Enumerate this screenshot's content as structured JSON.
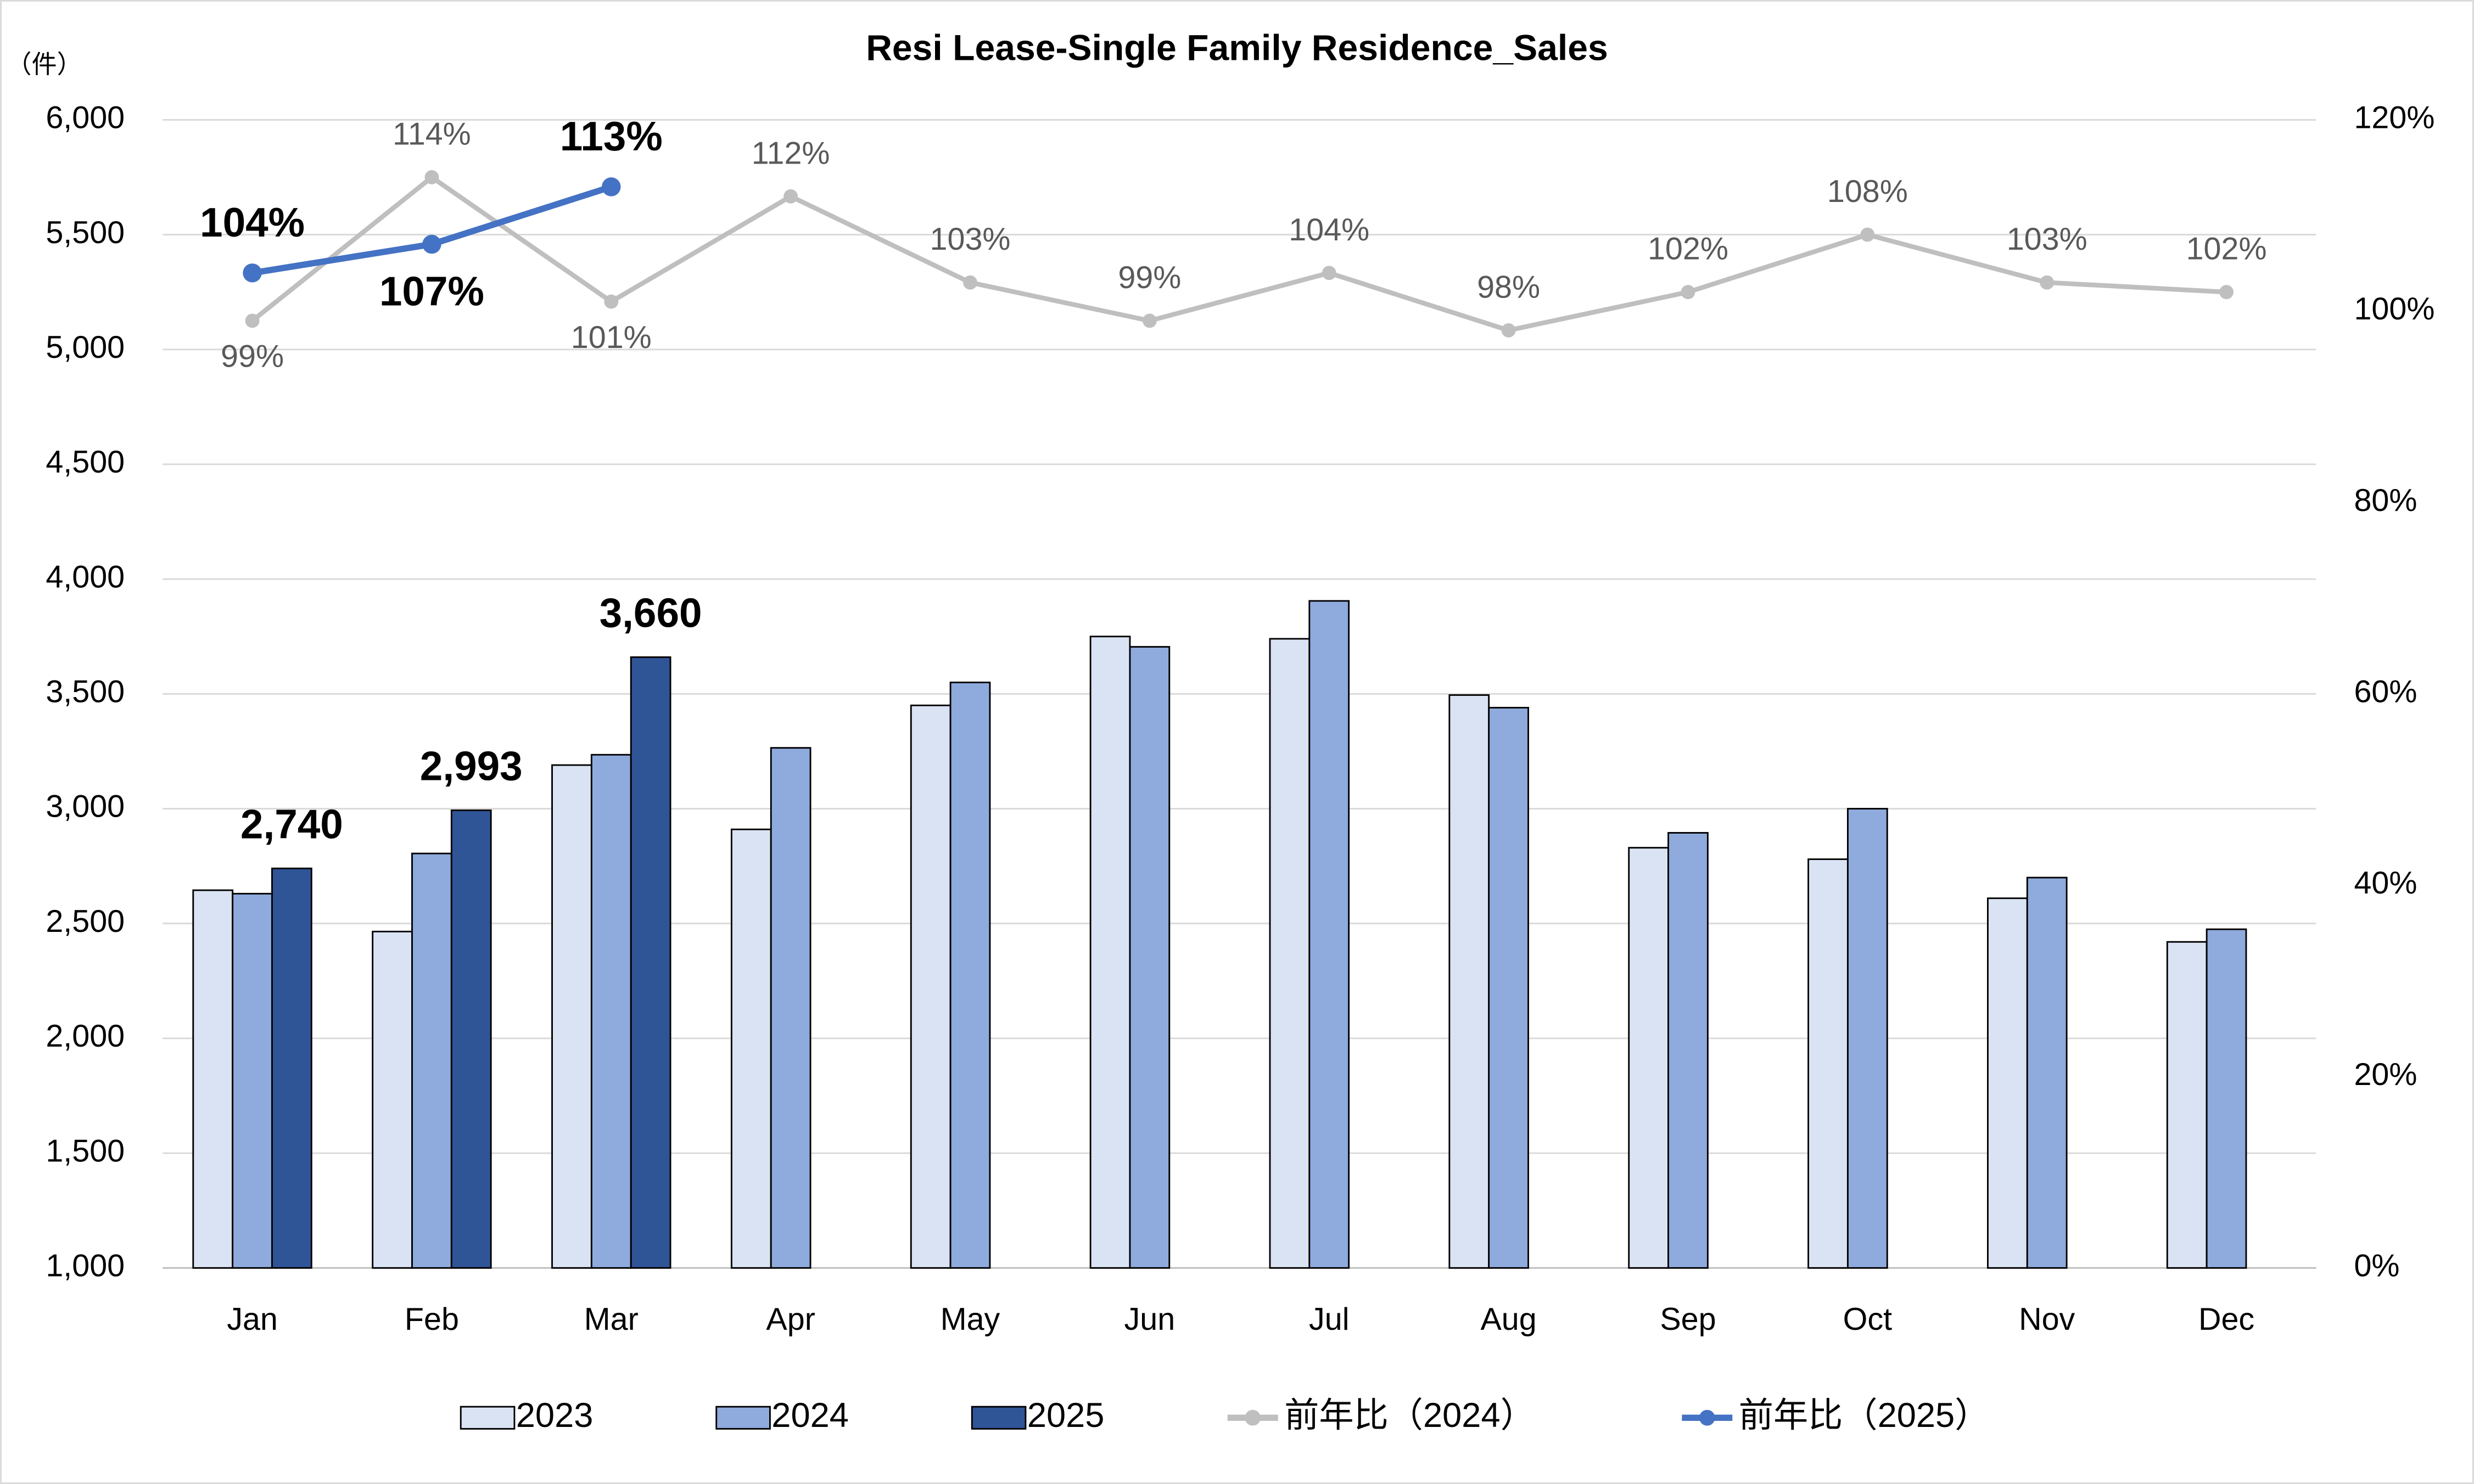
{
  "chart_data": {
    "type": "bar",
    "title": "Resi Lease-Single Family Residence_Sales",
    "y_label": "（件）",
    "categories": [
      "Jan",
      "Feb",
      "Mar",
      "Apr",
      "May",
      "Jun",
      "Jul",
      "Aug",
      "Sep",
      "Oct",
      "Nov",
      "Dec"
    ],
    "series": [
      {
        "name": "2023",
        "color": "#dae3f3",
        "values": [
          2645,
          2465,
          3190,
          2910,
          3450,
          3750,
          3740,
          3495,
          2830,
          2780,
          2610,
          2420
        ]
      },
      {
        "name": "2024",
        "color": "#8faadc",
        "values": [
          2630,
          2805,
          3235,
          3265,
          3550,
          3705,
          3905,
          3440,
          2895,
          3000,
          2700,
          2475
        ]
      },
      {
        "name": "2025",
        "color": "#2f5597",
        "values": [
          2740,
          2993,
          3660,
          null,
          null,
          null,
          null,
          null,
          null,
          null,
          null,
          null
        ],
        "value_labels": [
          "2,740",
          "2,993",
          "3,660",
          null,
          null,
          null,
          null,
          null,
          null,
          null,
          null,
          null
        ]
      },
      {
        "name": "前年比（2024）",
        "type": "line",
        "axis": "y2",
        "color": "#bfbfbf",
        "values": [
          99,
          114,
          101,
          112,
          103,
          99,
          104,
          98,
          102,
          108,
          103,
          102
        ],
        "value_labels": [
          "99%",
          "114%",
          "101%",
          "112%",
          "103%",
          "99%",
          "104%",
          "98%",
          "102%",
          "108%",
          "103%",
          "102%"
        ]
      },
      {
        "name": "前年比（2025）",
        "type": "line",
        "axis": "y2",
        "color": "#4472c4",
        "values": [
          104,
          107,
          113,
          null,
          null,
          null,
          null,
          null,
          null,
          null,
          null,
          null
        ],
        "value_labels": [
          "104%",
          "107%",
          "113%",
          null,
          null,
          null,
          null,
          null,
          null,
          null,
          null,
          null
        ]
      }
    ],
    "ylim": [
      1000,
      6000
    ],
    "yticks": [
      {
        "value": 1000,
        "label": "1,000"
      },
      {
        "value": 1500,
        "label": "1,500"
      },
      {
        "value": 2000,
        "label": "2,000"
      },
      {
        "value": 2500,
        "label": "2,500"
      },
      {
        "value": 3000,
        "label": "3,000"
      },
      {
        "value": 3500,
        "label": "3,500"
      },
      {
        "value": 4000,
        "label": "4,000"
      },
      {
        "value": 4500,
        "label": "4,500"
      },
      {
        "value": 5000,
        "label": "5,000"
      },
      {
        "value": 5500,
        "label": "5,500"
      },
      {
        "value": 6000,
        "label": "6,000"
      }
    ],
    "y2lim": [
      0,
      120
    ],
    "y2ticks": [
      {
        "value": 0,
        "label": "0%"
      },
      {
        "value": 20,
        "label": "20%"
      },
      {
        "value": 40,
        "label": "40%"
      },
      {
        "value": 60,
        "label": "60%"
      },
      {
        "value": 80,
        "label": "80%"
      },
      {
        "value": 100,
        "label": "100%"
      },
      {
        "value": 120,
        "label": "120%"
      }
    ],
    "grid": true,
    "legend": "bottom"
  }
}
